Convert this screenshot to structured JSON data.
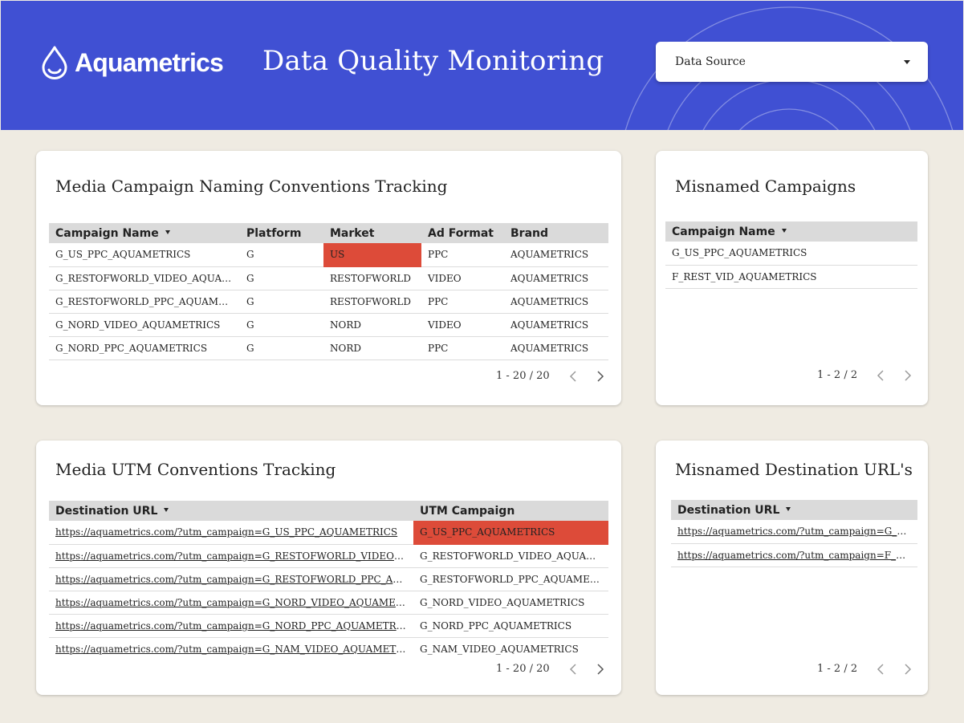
{
  "header": {
    "brand": "Aquametrics",
    "title": "Data Quality Monitoring",
    "data_source_label": "Data Source",
    "logo_icon": "water-drop-icon",
    "background_color": "#4050d3"
  },
  "colors": {
    "highlight": "#dd4b39",
    "table_header": "#dadada",
    "page_bg": "#efebe2"
  },
  "naming": {
    "title": "Media Campaign Naming Conventions Tracking",
    "columns": [
      "Campaign Name",
      "Platform",
      "Market",
      "Ad Format",
      "Brand"
    ],
    "rows": [
      [
        "G_US_PPC_AQUAMETRICS",
        "G",
        "US",
        "PPC",
        "AQUAMETRICS"
      ],
      [
        "G_RESTOFWORLD_VIDEO_AQUAMETRICS",
        "G",
        "RESTOFWORLD",
        "VIDEO",
        "AQUAMETRICS"
      ],
      [
        "G_RESTOFWORLD_PPC_AQUAMETRICS",
        "G",
        "RESTOFWORLD",
        "PPC",
        "AQUAMETRICS"
      ],
      [
        "G_NORD_VIDEO_AQUAMETRICS",
        "G",
        "NORD",
        "VIDEO",
        "AQUAMETRICS"
      ],
      [
        "G_NORD_PPC_AQUAMETRICS",
        "G",
        "NORD",
        "PPC",
        "AQUAMETRICS"
      ]
    ],
    "pager": "1 - 20 / 20"
  },
  "misnamed_campaigns": {
    "title": "Misnamed Campaigns",
    "columns": [
      "Campaign Name"
    ],
    "rows": [
      [
        "G_US_PPC_AQUAMETRICS"
      ],
      [
        "F_REST_VID_AQUAMETRICS"
      ]
    ],
    "pager": "1 - 2 / 2"
  },
  "utm": {
    "title": "Media UTM Conventions Tracking",
    "columns": [
      "Destination URL",
      "UTM Campaign"
    ],
    "rows": [
      [
        "https://aquametrics.com/?utm_campaign=G_US_PPC_AQUAMETRICS",
        "G_US_PPC_AQUAMETRICS"
      ],
      [
        "https://aquametrics.com/?utm_campaign=G_RESTOFWORLD_VIDEO_AQUAMETRICS",
        "G_RESTOFWORLD_VIDEO_AQUAMETRICS"
      ],
      [
        "https://aquametrics.com/?utm_campaign=G_RESTOFWORLD_PPC_AQUAMETRICS",
        "G_RESTOFWORLD_PPC_AQUAMETRICS"
      ],
      [
        "https://aquametrics.com/?utm_campaign=G_NORD_VIDEO_AQUAMETRICS",
        "G_NORD_VIDEO_AQUAMETRICS"
      ],
      [
        "https://aquametrics.com/?utm_campaign=G_NORD_PPC_AQUAMETRICS",
        "G_NORD_PPC_AQUAMETRICS"
      ],
      [
        "https://aquametrics.com/?utm_campaign=G_NAM_VIDEO_AQUAMETRICS",
        "G_NAM_VIDEO_AQUAMETRICS"
      ]
    ],
    "pager": "1 - 20 / 20"
  },
  "misnamed_urls": {
    "title": "Misnamed Destination URL's",
    "columns": [
      "Destination URL"
    ],
    "rows": [
      [
        "https://aquametrics.com/?utm_campaign=G_US_PPC_AQUAMETRICS"
      ],
      [
        "https://aquametrics.com/?utm_campaign=F_REST_VID_AQUAMETRICS"
      ]
    ],
    "pager": "1 - 2 / 2"
  }
}
